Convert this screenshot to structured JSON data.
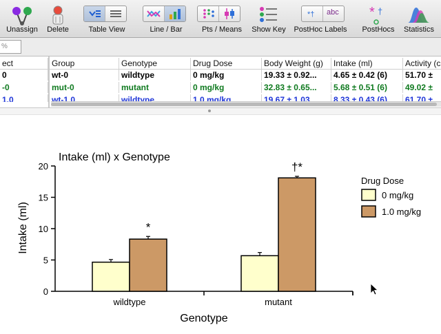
{
  "toolbar": {
    "buttons": [
      {
        "label": "Unassign",
        "icon": "unassign-icon"
      },
      {
        "label": "Delete",
        "icon": "delete-icon"
      },
      {
        "label": "Table View",
        "icon": "table-view-icon"
      },
      {
        "label": "Line / Bar",
        "icon": "line-bar-icon"
      },
      {
        "label": "Pts  / Means",
        "icon": "points-means-icon"
      },
      {
        "label": "Show Key",
        "icon": "show-key-icon"
      },
      {
        "label": "PostHoc Labels",
        "icon": "posthoc-labels-icon"
      },
      {
        "label": "PostHocs",
        "icon": "posthocs-icon"
      },
      {
        "label": "Statistics",
        "icon": "statistics-icon"
      }
    ],
    "posthoc_labels_sample": "abc",
    "posthoc_symbols": "*†"
  },
  "filter": {
    "value": "%"
  },
  "table": {
    "columns": [
      "ect",
      "Group",
      "Genotype",
      "Drug Dose",
      "Body Weight (g)",
      "Intake (ml)",
      "Activity (c"
    ],
    "rows": [
      {
        "color": "black",
        "cells": [
          "0",
          "wt-0",
          "wildtype",
          "0 mg/kg",
          "19.33 ± 0.92...",
          "4.65 ± 0.42 (6)",
          "51.70 ±"
        ]
      },
      {
        "color": "green",
        "cells": [
          "-0",
          "mut-0",
          "mutant",
          "0 mg/kg",
          "32.83 ± 0.65...",
          "5.68 ± 0.51 (6)",
          "49.02 ±"
        ]
      },
      {
        "color": "blue",
        "cells": [
          "1.0",
          "wt-1.0",
          "wildtype",
          "1.0 mg/kg",
          "19.67 ± 1.03...",
          "8.33 ± 0.43 (6)",
          "61.70 ±"
        ]
      }
    ]
  },
  "chart_data": {
    "type": "bar",
    "title": "Intake (ml) x Genotype",
    "xlabel": "Genotype",
    "ylabel": "Intake (ml)",
    "ylim": [
      0,
      20
    ],
    "yticks": [
      0,
      5,
      10,
      15,
      20
    ],
    "categories": [
      "wildtype",
      "mutant"
    ],
    "legend_title": "Drug Dose",
    "legend_position": "right",
    "series": [
      {
        "name": "0 mg/kg",
        "color": "#ffffcc",
        "values": [
          4.65,
          5.68
        ],
        "errors": [
          0.42,
          0.51
        ],
        "labels": [
          "",
          ""
        ]
      },
      {
        "name": "1.0 mg/kg",
        "color": "#cc9966",
        "values": [
          8.33,
          18.1
        ],
        "errors": [
          0.43,
          0.25
        ],
        "labels": [
          "*",
          "†*"
        ]
      }
    ]
  }
}
